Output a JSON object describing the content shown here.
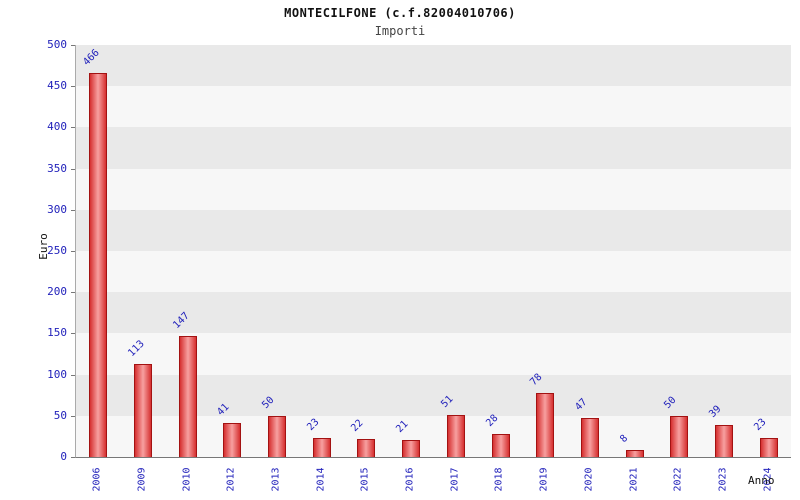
{
  "chart_data": {
    "type": "bar",
    "title": "MONTECILFONE (c.f.82004010706)",
    "subtitle": "Importi",
    "ylabel": "Euro",
    "xlabel": "Anno",
    "categories": [
      "2006",
      "2009",
      "2010",
      "2012",
      "2013",
      "2014",
      "2015",
      "2016",
      "2017",
      "2018",
      "2019",
      "2020",
      "2021",
      "2022",
      "2023",
      "2024"
    ],
    "values": [
      466,
      113,
      147,
      41,
      50,
      23,
      22,
      21,
      51,
      28,
      78,
      47,
      8,
      50,
      39,
      23
    ],
    "ylim": [
      0,
      500
    ],
    "ytick_step": 50,
    "yticks": [
      "0",
      "50",
      "100",
      "150",
      "200",
      "250",
      "300",
      "350",
      "400",
      "450",
      "500"
    ],
    "legend": "none",
    "grid": "alternating-horizontal-bands",
    "colors": {
      "bar_fill": "#d63030",
      "bar_highlight": "#f7a0a0",
      "bar_edge": "#a31212",
      "label_text": "#2222bb",
      "band_dark": "#e9e9e9",
      "band_light": "#f7f7f7",
      "title_text": "#111111",
      "subtitle_text": "#444444"
    }
  }
}
